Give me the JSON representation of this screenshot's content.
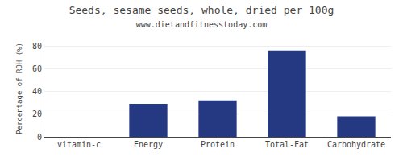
{
  "chart_data": {
    "type": "bar",
    "title": "Seeds, sesame seeds, whole, dried per 100g",
    "subtitle": "www.dietandfitnesstoday.com",
    "categories": [
      "vitamin-c",
      "Energy",
      "Protein",
      "Total-Fat",
      "Carbohydrate"
    ],
    "values": [
      0,
      29,
      32,
      76,
      18
    ],
    "color": "#253882",
    "ylabel": "Percentage of RDH (%)",
    "ylim": [
      0,
      85
    ],
    "yticks": [
      0,
      20,
      40,
      60,
      80
    ],
    "grid": true
  }
}
